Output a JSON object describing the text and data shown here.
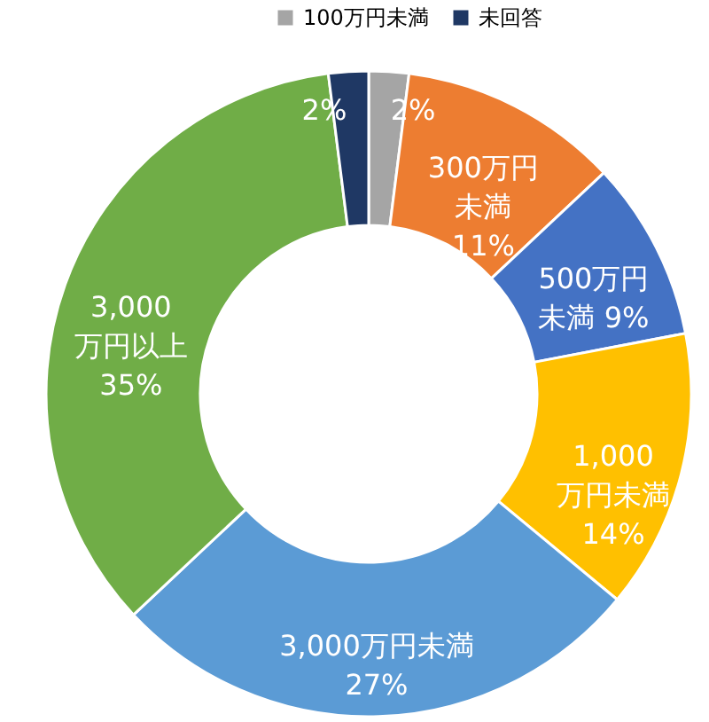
{
  "chart_data": {
    "type": "donut",
    "categories": [
      "100万円未満",
      "300万円未満",
      "500万円未満",
      "1,000万円未満",
      "3,000万円未満",
      "3,000万円以上",
      "未回答"
    ],
    "values": [
      2,
      11,
      9,
      14,
      27,
      35,
      2
    ],
    "colors": [
      "#a5a5a5",
      "#ed7d31",
      "#4472c4",
      "#ffc000",
      "#5b9bd5",
      "#70ad47",
      "#1f3864"
    ],
    "value_labels": [
      "2%",
      "11%",
      "9%",
      "14%",
      "27%",
      "35%",
      "2%"
    ],
    "legend": "top"
  }
}
